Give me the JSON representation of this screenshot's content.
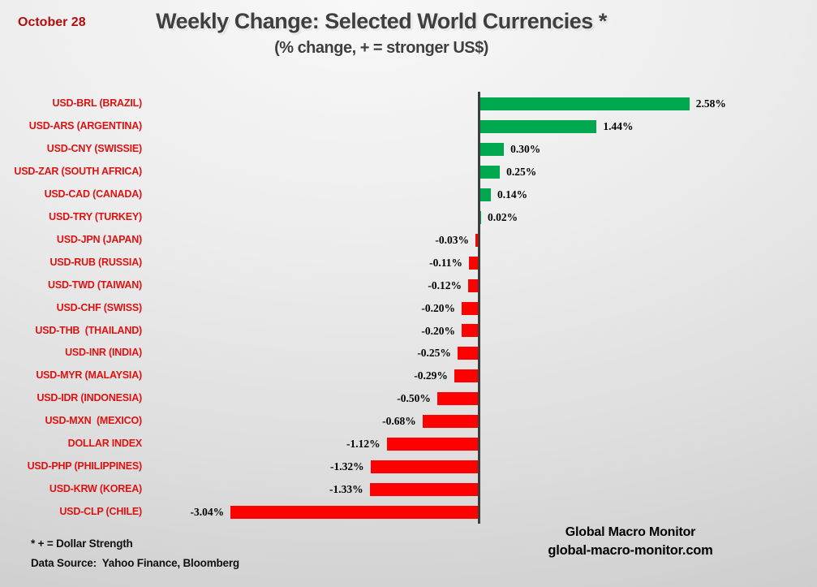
{
  "header": {
    "date": "October 28",
    "title": "Weekly Change: Selected World Currencies *",
    "subtitle": "(% change, + = stronger US$)"
  },
  "chart_data": {
    "type": "bar",
    "orientation": "horizontal",
    "title": "Weekly Change: Selected World Currencies *",
    "subtitle": "(% change, + = stronger US$)",
    "categories": [
      "USD-BRL (BRAZIL)",
      "USD-ARS (ARGENTINA)",
      "USD-CNY (SWISSIE)",
      "USD-ZAR (SOUTH AFRICA)",
      "USD-CAD (CANADA)",
      "USD-TRY (TURKEY)",
      "USD-JPN (JAPAN)",
      "USD-RUB (RUSSIA)",
      "USD-TWD (TAIWAN)",
      "USD-CHF (SWISS)",
      "USD-THB  (THAILAND)",
      "USD-INR (INDIA)",
      "USD-MYR (MALAYSIA)",
      "USD-IDR (INDONESIA)",
      "USD-MXN  (MEXICO)",
      "DOLLAR INDEX",
      "USD-PHP (PHILIPPINES)",
      "USD-KRW (KOREA)",
      "USD-CLP (CHILE)"
    ],
    "values": [
      2.58,
      1.44,
      0.3,
      0.25,
      0.14,
      0.02,
      -0.03,
      -0.11,
      -0.12,
      -0.2,
      -0.2,
      -0.25,
      -0.29,
      -0.5,
      -0.68,
      -1.12,
      -1.32,
      -1.33,
      -3.04
    ],
    "value_labels": [
      "2.58%",
      "1.44%",
      "0.30%",
      "0.25%",
      "0.14%",
      "0.02%",
      "-0.03%",
      "-0.11%",
      "-0.12%",
      "-0.20%",
      "-0.20%",
      "-0.25%",
      "-0.29%",
      "-0.50%",
      "-0.68%",
      "-1.12%",
      "-1.32%",
      "-1.33%",
      "-3.04%"
    ],
    "xlim": [
      -3.5,
      3.0
    ],
    "grid": false,
    "legend": false,
    "positive_color": "#00a84f",
    "negative_color": "#fe0000",
    "category_label_color": "#df1212",
    "axis_color": "#3d3d3d"
  },
  "footer": {
    "note1": "* + = Dollar Strength",
    "note2": "Data Source:  Yahoo Finance, Bloomberg",
    "brand_name": "Global Macro Monitor",
    "brand_url": "global-macro-monitor.com"
  }
}
